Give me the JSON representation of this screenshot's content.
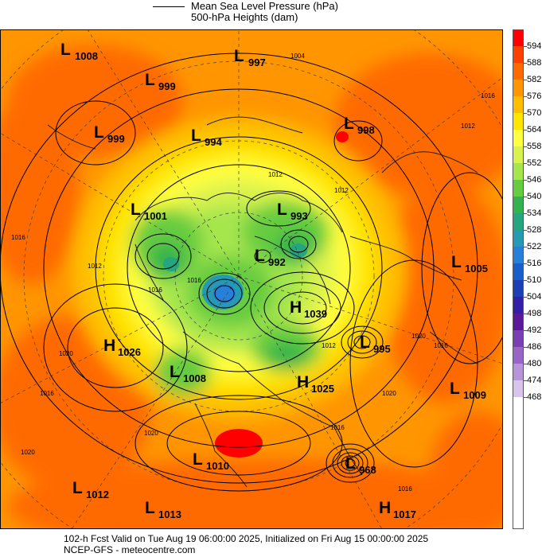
{
  "header": {
    "legend_mslp": "Mean Sea Level Pressure (hPa)",
    "legend_heights": "500-hPa Heights (dam)"
  },
  "footer": {
    "valid_line": "102-h Fcst Valid on Tue Aug 19 06:00:00 2025, Initialized on Fri Aug 15 00:00:00 2025",
    "source_line": "NCEP-GFS - meteocentre.com"
  },
  "colorbar": {
    "labels": [
      "594",
      "588",
      "582",
      "576",
      "570",
      "564",
      "558",
      "552",
      "546",
      "540",
      "534",
      "528",
      "522",
      "516",
      "510",
      "504",
      "498",
      "492",
      "486",
      "480",
      "474",
      "468"
    ],
    "colors": [
      "#ff0000",
      "#ff4000",
      "#ff6a00",
      "#ff9500",
      "#ffbf00",
      "#ffe600",
      "#ffff40",
      "#d9f24d",
      "#a6e64d",
      "#66cc40",
      "#33b34d",
      "#26a680",
      "#2699b3",
      "#2680d9",
      "#1a5ecc",
      "#1a40b3",
      "#3320a6",
      "#5a1a99",
      "#7a40b3",
      "#9966c7",
      "#b894d9",
      "#d9c4eb"
    ],
    "bottom_color": "#ffffff"
  },
  "pressure_centers": [
    {
      "type": "L",
      "value": "1008"
    },
    {
      "type": "L",
      "value": "997"
    },
    {
      "type": "L",
      "value": "999"
    },
    {
      "type": "L",
      "value": "999"
    },
    {
      "type": "L",
      "value": "994"
    },
    {
      "type": "L",
      "value": "998"
    },
    {
      "type": "L",
      "value": "1001"
    },
    {
      "type": "L",
      "value": "993"
    },
    {
      "type": "L",
      "value": "992"
    },
    {
      "type": "L",
      "value": "1005"
    },
    {
      "type": "H",
      "value": "1039"
    },
    {
      "type": "H",
      "value": "1026"
    },
    {
      "type": "L",
      "value": "995"
    },
    {
      "type": "L",
      "value": "1008"
    },
    {
      "type": "H",
      "value": "1025"
    },
    {
      "type": "L",
      "value": "1009"
    },
    {
      "type": "L",
      "value": "1010"
    },
    {
      "type": "L",
      "value": "968"
    },
    {
      "type": "L",
      "value": "1012"
    },
    {
      "type": "L",
      "value": "1013"
    },
    {
      "type": "H",
      "value": "1017"
    }
  ],
  "isobar_labels": [
    "1004",
    "1016",
    "1012",
    "1012",
    "1012",
    "1016",
    "1016",
    "1012",
    "1020",
    "1020",
    "1016",
    "1016",
    "1020",
    "1016",
    "1016",
    "1020",
    "1012",
    "1020",
    "1016"
  ]
}
